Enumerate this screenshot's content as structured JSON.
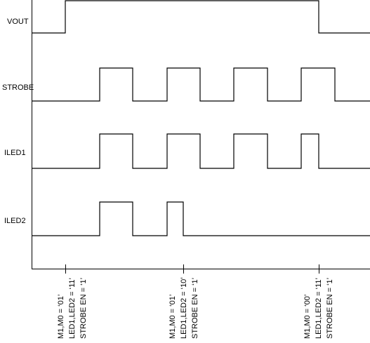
{
  "signals": [
    {
      "label": "VOUT"
    },
    {
      "label": "STROBE"
    },
    {
      "label": "ILED1"
    },
    {
      "label": "ILED2"
    }
  ],
  "events": [
    {
      "lines": [
        "M1,M0 = ‘01’",
        "LED1,LED2 = ‘11’",
        "STROBE EN = ‘1’"
      ]
    },
    {
      "lines": [
        "M1,M0 = ‘01’",
        "LED1,LED2 = ‘10’",
        "STROBE EN = ‘1’"
      ]
    },
    {
      "lines": [
        "M1,M0 = ‘00’",
        "LED1,LED2 = ‘11’",
        "STROBE EN = ‘1’"
      ]
    }
  ]
}
